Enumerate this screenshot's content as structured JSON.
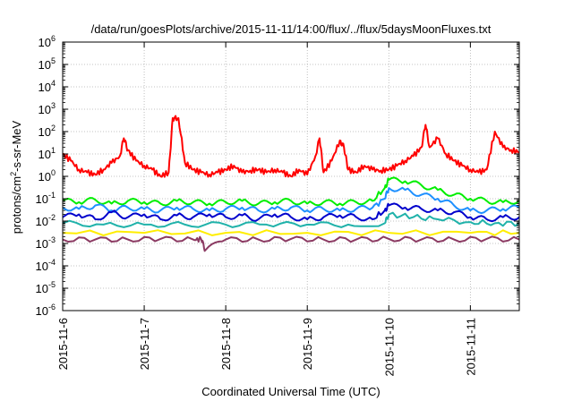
{
  "chart_data": {
    "type": "line",
    "title": "/data/run/goesPlots/archive/2015-11-11/14:00/flux/../flux/5daysMoonFluxes.txt",
    "xlabel": "Coordinated Universal Time (UTC)",
    "ylabel_main": "protons/cm",
    "ylabel_sup": "2",
    "ylabel_rest": "-s-sr-MeV",
    "yscale": "log",
    "ylim_exp": [
      -6,
      6
    ],
    "ytick_base": "10",
    "ytick_exponents": [
      "6",
      "5",
      "4",
      "3",
      "2",
      "1",
      "0",
      "-1",
      "-2",
      "-3",
      "-4",
      "-5",
      "-6"
    ],
    "xlim": [
      "2015-11-06",
      "2015-11-11.6"
    ],
    "xtick_labels": [
      "2015-11-6",
      "2015-11-7",
      "2015-11-8",
      "2015-11-9",
      "2015-11-10",
      "2015-11-11"
    ],
    "grid": true,
    "series": [
      {
        "color": "#ff0000",
        "x": [
          0.0,
          0.1,
          0.2,
          0.3,
          0.4,
          0.5,
          0.6,
          0.7,
          0.75,
          0.8,
          0.9,
          1.0,
          1.1,
          1.2,
          1.3,
          1.35,
          1.42,
          1.5,
          1.6,
          1.7,
          1.8,
          1.9,
          2.0,
          2.1,
          2.2,
          2.3,
          2.4,
          2.5,
          2.6,
          2.7,
          2.8,
          2.9,
          3.0,
          3.1,
          3.15,
          3.2,
          3.3,
          3.4,
          3.45,
          3.5,
          3.6,
          3.7,
          3.8,
          3.9,
          4.0,
          4.1,
          4.2,
          4.3,
          4.4,
          4.45,
          4.5,
          4.6,
          4.7,
          4.8,
          4.9,
          5.0,
          5.1,
          5.2,
          5.3,
          5.4,
          5.5,
          5.6
        ],
        "y": [
          10,
          5,
          2,
          1.5,
          1.2,
          2,
          4,
          8,
          50,
          15,
          5,
          3,
          2,
          1,
          1.5,
          400,
          400,
          4,
          2,
          1.5,
          1.2,
          1.5,
          2,
          3,
          1.5,
          1.8,
          2,
          1.5,
          2,
          1.5,
          1,
          2,
          1.2,
          8,
          50,
          1.5,
          5,
          40,
          20,
          2,
          1.5,
          3,
          2,
          1.8,
          2,
          3,
          5,
          8,
          20,
          200,
          20,
          50,
          10,
          5,
          3,
          2,
          1.5,
          2,
          100,
          20,
          15,
          12
        ]
      },
      {
        "color": "#00ee00",
        "x": [
          0.0,
          0.2,
          0.4,
          0.6,
          0.8,
          1.0,
          1.2,
          1.4,
          1.6,
          1.8,
          2.0,
          2.2,
          2.4,
          2.6,
          2.8,
          3.0,
          3.2,
          3.4,
          3.6,
          3.8,
          3.95,
          4.0,
          4.2,
          4.4,
          4.6,
          4.8,
          5.0,
          5.2,
          5.4,
          5.6
        ],
        "y": [
          0.08,
          0.07,
          0.09,
          0.06,
          0.08,
          0.07,
          0.06,
          0.08,
          0.07,
          0.06,
          0.07,
          0.08,
          0.06,
          0.07,
          0.08,
          0.06,
          0.07,
          0.06,
          0.07,
          0.08,
          0.3,
          0.7,
          0.6,
          0.4,
          0.25,
          0.15,
          0.1,
          0.08,
          0.07,
          0.08
        ]
      },
      {
        "color": "#1e90ff",
        "x": [
          0.0,
          0.2,
          0.4,
          0.6,
          0.8,
          1.0,
          1.2,
          1.4,
          1.6,
          1.8,
          2.0,
          2.2,
          2.4,
          2.6,
          2.8,
          3.0,
          3.2,
          3.4,
          3.6,
          3.8,
          3.95,
          4.0,
          4.2,
          4.4,
          4.6,
          4.8,
          5.0,
          5.2,
          5.4,
          5.6
        ],
        "y": [
          0.04,
          0.035,
          0.05,
          0.03,
          0.04,
          0.035,
          0.03,
          0.04,
          0.035,
          0.03,
          0.035,
          0.04,
          0.03,
          0.035,
          0.04,
          0.03,
          0.035,
          0.03,
          0.035,
          0.04,
          0.1,
          0.3,
          0.25,
          0.15,
          0.1,
          0.05,
          0.03,
          0.03,
          0.035,
          0.04
        ]
      },
      {
        "color": "#0000cc",
        "x": [
          0.0,
          0.2,
          0.4,
          0.6,
          0.8,
          1.0,
          1.2,
          1.4,
          1.6,
          1.8,
          2.0,
          2.2,
          2.4,
          2.6,
          2.8,
          3.0,
          3.2,
          3.4,
          3.6,
          3.8,
          3.95,
          4.0,
          4.2,
          4.4,
          4.6,
          4.8,
          5.0,
          5.2,
          5.4,
          5.6
        ],
        "y": [
          0.015,
          0.02,
          0.012,
          0.025,
          0.015,
          0.02,
          0.012,
          0.018,
          0.015,
          0.02,
          0.015,
          0.018,
          0.012,
          0.02,
          0.015,
          0.012,
          0.015,
          0.018,
          0.015,
          0.012,
          0.03,
          0.05,
          0.04,
          0.035,
          0.03,
          0.025,
          0.015,
          0.012,
          0.015,
          0.015
        ]
      },
      {
        "color": "#20b2aa",
        "x": [
          0.0,
          0.5,
          1.0,
          1.5,
          2.0,
          2.5,
          3.0,
          3.5,
          3.95,
          4.0,
          4.3,
          4.6,
          5.0,
          5.3,
          5.6
        ],
        "y": [
          0.008,
          0.007,
          0.007,
          0.007,
          0.007,
          0.007,
          0.007,
          0.007,
          0.008,
          0.02,
          0.015,
          0.012,
          0.009,
          0.008,
          0.008
        ]
      },
      {
        "color": "#ffee00",
        "x": [
          0.0,
          1.0,
          2.0,
          3.0,
          4.0,
          5.0,
          5.6
        ],
        "y": [
          0.003,
          0.003,
          0.003,
          0.003,
          0.003,
          0.003,
          0.003
        ]
      },
      {
        "color": "#8b3a62",
        "x": [
          0.0,
          0.4,
          0.8,
          1.2,
          1.6,
          1.7,
          1.75,
          2.0,
          2.4,
          2.8,
          3.2,
          3.6,
          4.0,
          4.4,
          4.8,
          5.2,
          5.6
        ],
        "y": [
          0.0015,
          0.0015,
          0.0015,
          0.0016,
          0.0015,
          0.0015,
          0.0005,
          0.0015,
          0.0015,
          0.0016,
          0.0015,
          0.0015,
          0.0016,
          0.0015,
          0.0015,
          0.0016,
          0.0015
        ]
      }
    ]
  }
}
